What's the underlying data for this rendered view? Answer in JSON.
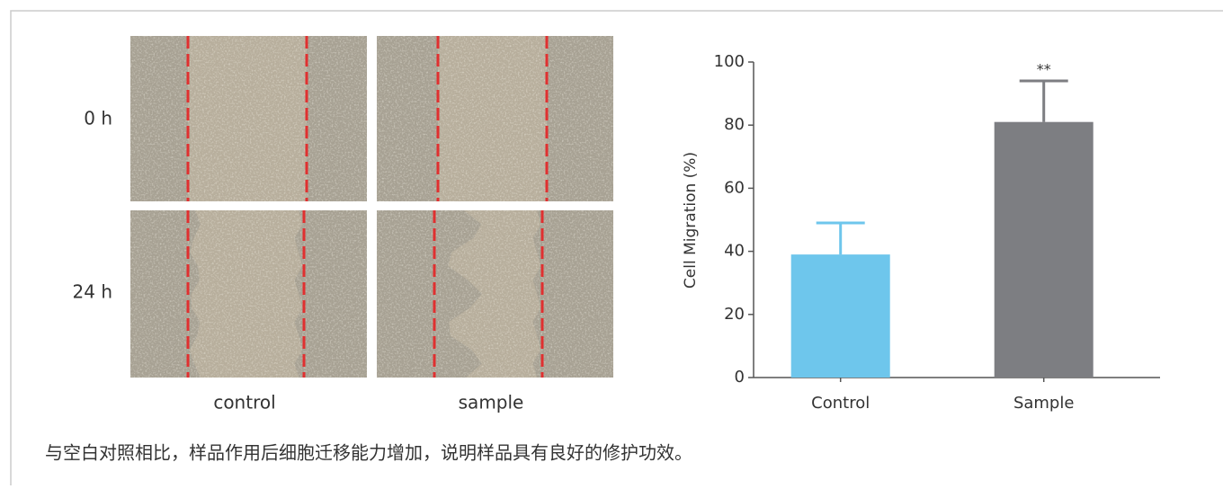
{
  "images": {
    "row_labels": [
      "0 h",
      "24 h"
    ],
    "col_labels": [
      "control",
      "sample"
    ]
  },
  "chart_data": {
    "type": "bar",
    "ylabel": "Cell Migration  (%)",
    "categories": [
      "Control",
      "Sample"
    ],
    "values": [
      39,
      81
    ],
    "errors": [
      10,
      13
    ],
    "colors": [
      "#6ec6ec",
      "#7d7e82"
    ],
    "annotations": [
      null,
      "**"
    ],
    "ylim": [
      0,
      100
    ],
    "yticks": [
      0,
      20,
      40,
      60,
      80,
      100
    ]
  },
  "caption": "与空白对照相比，样品作用后细胞迁移能力增加，说明样品具有良好的修护功效。"
}
